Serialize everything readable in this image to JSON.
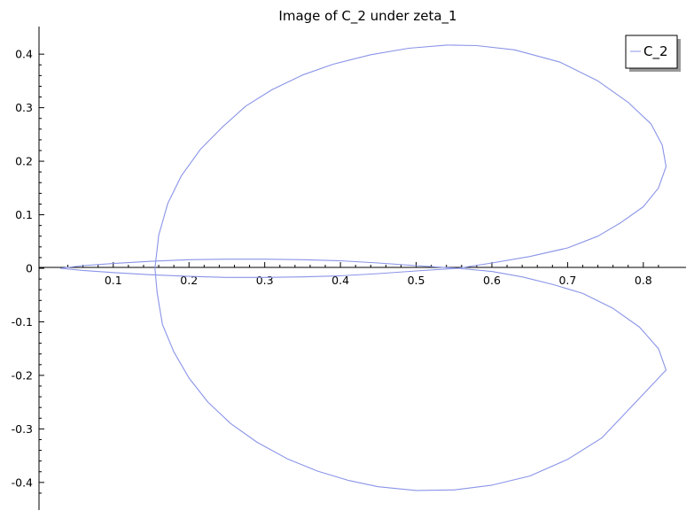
{
  "chart_data": {
    "type": "line",
    "title": "Image of C_2 under zeta_1",
    "xlabel": "",
    "ylabel": "",
    "xlim": [
      0.03,
      0.84
    ],
    "ylim": [
      -0.435,
      0.435
    ],
    "grid": false,
    "legend_position": "top-right",
    "x_ticks": [
      0.1,
      0.2,
      0.3,
      0.4,
      0.5,
      0.6,
      0.7,
      0.8
    ],
    "x_tick_labels": [
      "0.1",
      "0.2",
      "0.3",
      "0.4",
      "0.5",
      "0.6",
      "0.7",
      "0.8"
    ],
    "y_ticks": [
      -0.4,
      -0.3,
      -0.2,
      -0.1,
      0,
      0.1,
      0.2,
      0.3,
      0.4
    ],
    "y_tick_labels": [
      "-0.4",
      "-0.3",
      "-0.2",
      "-0.1",
      "0",
      "0.1",
      "0.2",
      "0.3",
      "0.4"
    ],
    "series": [
      {
        "name": "C_2",
        "color": "#8a94e8",
        "points": [
          [
            0.03,
            0.0
          ],
          [
            0.06,
            0.005
          ],
          [
            0.1,
            0.009
          ],
          [
            0.15,
            0.013
          ],
          [
            0.2,
            0.016
          ],
          [
            0.25,
            0.017
          ],
          [
            0.3,
            0.017
          ],
          [
            0.35,
            0.016
          ],
          [
            0.4,
            0.014
          ],
          [
            0.45,
            0.01
          ],
          [
            0.5,
            0.005
          ],
          [
            0.555,
            0.0
          ],
          [
            0.6,
            0.01
          ],
          [
            0.65,
            0.022
          ],
          [
            0.7,
            0.038
          ],
          [
            0.74,
            0.06
          ],
          [
            0.77,
            0.085
          ],
          [
            0.8,
            0.115
          ],
          [
            0.82,
            0.15
          ],
          [
            0.83,
            0.19
          ],
          [
            0.825,
            0.23
          ],
          [
            0.81,
            0.27
          ],
          [
            0.78,
            0.31
          ],
          [
            0.74,
            0.35
          ],
          [
            0.69,
            0.385
          ],
          [
            0.63,
            0.408
          ],
          [
            0.58,
            0.416
          ],
          [
            0.54,
            0.417
          ],
          [
            0.49,
            0.411
          ],
          [
            0.44,
            0.399
          ],
          [
            0.39,
            0.381
          ],
          [
            0.35,
            0.361
          ],
          [
            0.31,
            0.334
          ],
          [
            0.275,
            0.303
          ],
          [
            0.245,
            0.265
          ],
          [
            0.215,
            0.222
          ],
          [
            0.19,
            0.173
          ],
          [
            0.172,
            0.121
          ],
          [
            0.16,
            0.062
          ],
          [
            0.155,
            0.0
          ],
          [
            0.158,
            -0.047
          ],
          [
            0.165,
            -0.105
          ],
          [
            0.18,
            -0.156
          ],
          [
            0.2,
            -0.205
          ],
          [
            0.225,
            -0.25
          ],
          [
            0.255,
            -0.29
          ],
          [
            0.29,
            -0.325
          ],
          [
            0.33,
            -0.356
          ],
          [
            0.37,
            -0.379
          ],
          [
            0.41,
            -0.396
          ],
          [
            0.45,
            -0.408
          ],
          [
            0.5,
            -0.415
          ],
          [
            0.55,
            -0.414
          ],
          [
            0.6,
            -0.405
          ],
          [
            0.65,
            -0.388
          ],
          [
            0.7,
            -0.357
          ],
          [
            0.745,
            -0.317
          ],
          [
            0.78,
            -0.265
          ],
          [
            0.83,
            -0.19
          ],
          [
            0.82,
            -0.15
          ],
          [
            0.795,
            -0.11
          ],
          [
            0.76,
            -0.075
          ],
          [
            0.72,
            -0.047
          ],
          [
            0.68,
            -0.03
          ],
          [
            0.64,
            -0.016
          ],
          [
            0.6,
            -0.006
          ],
          [
            0.555,
            0.0
          ],
          [
            0.5,
            -0.005
          ],
          [
            0.45,
            -0.01
          ],
          [
            0.4,
            -0.014
          ],
          [
            0.35,
            -0.016
          ],
          [
            0.3,
            -0.017
          ],
          [
            0.25,
            -0.017
          ],
          [
            0.2,
            -0.015
          ],
          [
            0.15,
            -0.012
          ],
          [
            0.1,
            -0.008
          ],
          [
            0.06,
            -0.004
          ],
          [
            0.03,
            0.0
          ]
        ]
      }
    ]
  }
}
